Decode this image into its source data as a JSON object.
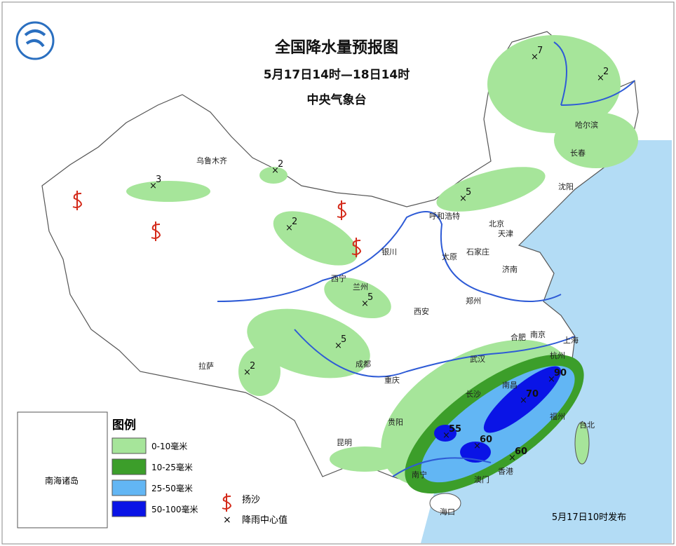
{
  "header": {
    "title": "全国降水量预报图",
    "subtitle": "5月17日14时—18日14时",
    "agency": "中央气象台"
  },
  "legend": {
    "title": "图例",
    "items": [
      {
        "label": "0-10毫米",
        "color": "#a6e59a"
      },
      {
        "label": "10-25毫米",
        "color": "#3c9e2a"
      },
      {
        "label": "25-50毫米",
        "color": "#62b6f4"
      },
      {
        "label": "50-100毫米",
        "color": "#0a14e6"
      }
    ],
    "symbols": [
      {
        "label": "扬沙"
      },
      {
        "label": "降雨中心值"
      }
    ]
  },
  "cities": [
    "乌鲁木齐",
    "哈尔滨",
    "长春",
    "沈阳",
    "呼和浩特",
    "北京",
    "天津",
    "银川",
    "太原",
    "石家庄",
    "西宁",
    "兰州",
    "济南",
    "郑州",
    "西安",
    "合肥",
    "南京",
    "上海",
    "杭州",
    "成都",
    "武汉",
    "重庆",
    "长沙",
    "南昌",
    "拉萨",
    "贵阳",
    "福州",
    "台北",
    "昆明",
    "南宁",
    "香港",
    "澳门",
    "海口"
  ],
  "rain_centers": [
    7,
    2,
    2,
    3,
    5,
    2,
    5,
    5,
    2,
    90,
    70,
    55,
    60,
    60
  ],
  "inset": {
    "label": "南海诸岛"
  },
  "issued": "5月17日10时发布"
}
